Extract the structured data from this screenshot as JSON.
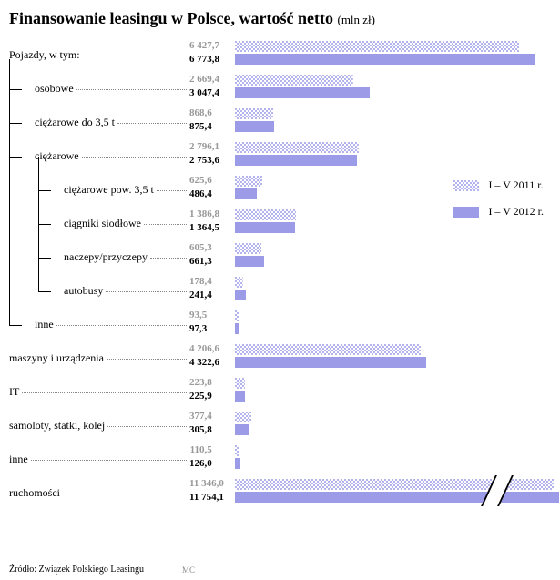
{
  "title": "Finansowanie leasingu w Polsce, wartość netto",
  "unit": "(mln zł)",
  "colors": {
    "solid": "#9b9be8",
    "pattern": "#9b9be8",
    "background": "#ffffff",
    "text": "#000000",
    "muted": "#999999"
  },
  "legend": {
    "y2011": "I – V 2011 r.",
    "y2012": "I – V 2012 r."
  },
  "max_value": 7000,
  "bar_area_width": 340,
  "rows": [
    {
      "label": "Pojazdy, w tym:",
      "indent": 0,
      "v2011": "6 427,7",
      "v2012": "6 773,8",
      "n2011": 6427.7,
      "n2012": 6773.8,
      "tree": "root"
    },
    {
      "label": "osobowe",
      "indent": 1,
      "v2011": "2 669,4",
      "v2012": "3 047,4",
      "n2011": 2669.4,
      "n2012": 3047.4
    },
    {
      "label": "ciężarowe do 3,5 t",
      "indent": 1,
      "v2011": "868,6",
      "v2012": "875,4",
      "n2011": 868.6,
      "n2012": 875.4
    },
    {
      "label": "ciężarowe",
      "indent": 1,
      "v2011": "2 796,1",
      "v2012": "2 753,6",
      "n2011": 2796.1,
      "n2012": 2753.6,
      "tree": "branch"
    },
    {
      "label": "ciężarowe pow. 3,5 t",
      "indent": 2,
      "v2011": "625,6",
      "v2012": "486,4",
      "n2011": 625.6,
      "n2012": 486.4
    },
    {
      "label": "ciągniki siodłowe",
      "indent": 2,
      "v2011": "1 386,8",
      "v2012": "1 364,5",
      "n2011": 1386.8,
      "n2012": 1364.5
    },
    {
      "label": "naczepy/przyczepy",
      "indent": 2,
      "v2011": "605,3",
      "v2012": "661,3",
      "n2011": 605.3,
      "n2012": 661.3
    },
    {
      "label": "autobusy",
      "indent": 2,
      "v2011": "178,4",
      "v2012": "241,4",
      "n2011": 178.4,
      "n2012": 241.4
    },
    {
      "label": "inne",
      "indent": 1,
      "v2011": "93,5",
      "v2012": "97,3",
      "n2011": 93.5,
      "n2012": 97.3
    },
    {
      "label": "maszyny i urządzenia",
      "indent": 0,
      "v2011": "4 206,6",
      "v2012": "4 322,6",
      "n2011": 4206.6,
      "n2012": 4322.6
    },
    {
      "label": "IT",
      "indent": 0,
      "v2011": "223,8",
      "v2012": "225,9",
      "n2011": 223.8,
      "n2012": 225.9
    },
    {
      "label": "samoloty, statki, kolej",
      "indent": 0,
      "v2011": "377,4",
      "v2012": "305,8",
      "n2011": 377.4,
      "n2012": 305.8
    },
    {
      "label": "inne",
      "indent": 0,
      "v2011": "110,5",
      "v2012": "126,0",
      "n2011": 110.5,
      "n2012": 126.0
    },
    {
      "label": "ruchomości",
      "indent": 0,
      "v2011": "11 346,0",
      "v2012": "11 754,1",
      "n2011": 11346.0,
      "n2012": 11754.1,
      "break": true
    }
  ],
  "source": "Źródło: Związek Polskiego Leasingu",
  "author": "MC"
}
